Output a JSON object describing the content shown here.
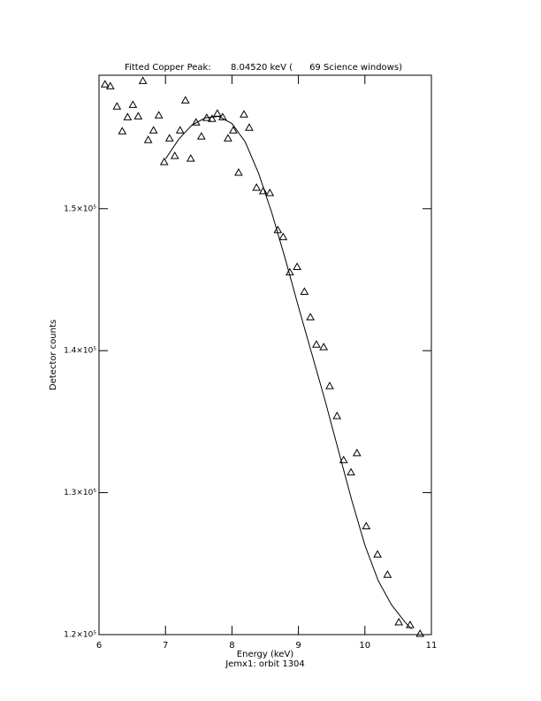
{
  "chart_data": {
    "type": "scatter",
    "title": "Fitted Copper Peak:       8.04520 keV (      69 Science windows)",
    "xlabel": "Energy (keV)",
    "subtitle": "Jemx1: orbit 1304",
    "ylabel": "Detector counts",
    "xlim": [
      6,
      11
    ],
    "xticks": [
      6,
      7,
      8,
      9,
      10,
      11
    ],
    "ylim": [
      120000,
      159400
    ],
    "yticks": [
      {
        "value": 120000,
        "label": "1.2×10⁵"
      },
      {
        "value": 130000,
        "label": "1.3×10⁵"
      },
      {
        "value": 140000,
        "label": "1.4×10⁵"
      },
      {
        "value": 150000,
        "label": "1.5×10⁵"
      }
    ],
    "series": [
      {
        "marker": "triangle",
        "color": "#000000",
        "x": [
          6.09,
          6.17,
          6.27,
          6.35,
          6.43,
          6.51,
          6.59,
          6.66,
          6.74,
          6.82,
          6.9,
          6.98,
          7.06,
          7.14,
          7.22,
          7.3,
          7.38,
          7.46,
          7.54,
          7.62,
          7.7,
          7.78,
          7.86,
          7.94,
          8.02,
          8.1,
          8.18,
          8.26,
          8.37,
          8.47,
          8.57,
          8.69,
          8.77,
          8.87,
          8.98,
          9.09,
          9.18,
          9.27,
          9.38,
          9.47,
          9.58,
          9.68,
          9.79,
          9.88,
          10.02,
          10.19,
          10.34,
          10.51,
          10.68,
          10.83
        ],
        "values": [
          158760,
          158630,
          157200,
          155460,
          156450,
          157320,
          156510,
          159000,
          154840,
          155520,
          156580,
          153290,
          154960,
          153720,
          155520,
          157630,
          153530,
          156080,
          155090,
          156400,
          156330,
          156700,
          156450,
          154960,
          155520,
          152540,
          156640,
          155710,
          151480,
          151240,
          151110,
          148500,
          148010,
          145520,
          145900,
          144160,
          142360,
          140430,
          140250,
          137510,
          135400,
          132300,
          131430,
          132790,
          127640,
          125650,
          124220,
          120870,
          120680,
          120060
        ]
      },
      {
        "marker": "none",
        "color": "#000000",
        "x": [
          7.0,
          7.2,
          7.4,
          7.6,
          7.8,
          8.0,
          8.2,
          8.4,
          8.6,
          8.8,
          9.0,
          9.2,
          9.4,
          9.6,
          9.8,
          10.0,
          10.2,
          10.4,
          10.6,
          10.7
        ],
        "values": [
          153500,
          154900,
          155900,
          156400,
          156500,
          156000,
          154700,
          152500,
          149700,
          146500,
          143100,
          139800,
          136500,
          133000,
          129500,
          126300,
          123800,
          122100,
          120900,
          120400
        ]
      }
    ]
  }
}
